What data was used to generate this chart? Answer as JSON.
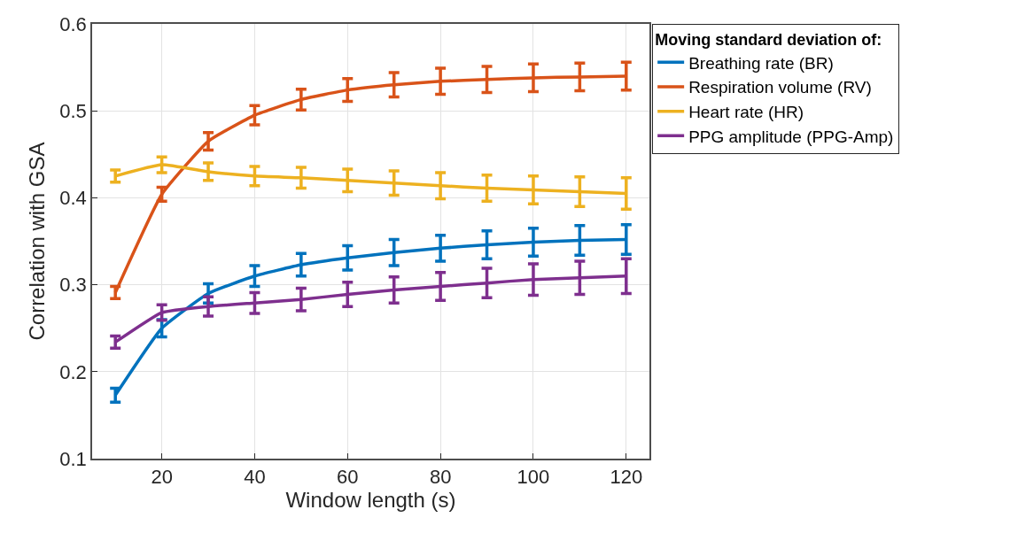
{
  "chart_data": {
    "type": "line",
    "xlabel": "Window length (s)",
    "ylabel": "Correlation with GSA",
    "legend_title": "Moving standard deviation of:",
    "x": [
      10,
      20,
      30,
      40,
      50,
      60,
      70,
      80,
      90,
      100,
      110,
      120
    ],
    "series": [
      {
        "name": "Breathing rate (BR)",
        "color": "#0072bd",
        "values": [
          0.173,
          0.25,
          0.29,
          0.31,
          0.323,
          0.331,
          0.337,
          0.342,
          0.346,
          0.349,
          0.351,
          0.352
        ],
        "errors": [
          0.008,
          0.01,
          0.011,
          0.012,
          0.013,
          0.014,
          0.015,
          0.015,
          0.016,
          0.016,
          0.017,
          0.017
        ]
      },
      {
        "name": "Respiration volume (RV)",
        "color": "#d95319",
        "values": [
          0.291,
          0.404,
          0.465,
          0.495,
          0.513,
          0.524,
          0.53,
          0.534,
          0.536,
          0.538,
          0.539,
          0.54
        ],
        "errors": [
          0.007,
          0.008,
          0.01,
          0.011,
          0.012,
          0.013,
          0.014,
          0.015,
          0.015,
          0.016,
          0.016,
          0.016
        ]
      },
      {
        "name": "Heart rate (HR)",
        "color": "#edb120",
        "values": [
          0.425,
          0.438,
          0.43,
          0.425,
          0.423,
          0.42,
          0.417,
          0.414,
          0.411,
          0.409,
          0.407,
          0.405
        ],
        "errors": [
          0.007,
          0.009,
          0.01,
          0.011,
          0.012,
          0.013,
          0.014,
          0.015,
          0.015,
          0.016,
          0.017,
          0.018
        ]
      },
      {
        "name": "PPG amplitude (PPG-Amp)",
        "color": "#7e2f8e",
        "values": [
          0.234,
          0.268,
          0.275,
          0.279,
          0.283,
          0.289,
          0.294,
          0.298,
          0.302,
          0.306,
          0.308,
          0.31
        ],
        "errors": [
          0.007,
          0.009,
          0.011,
          0.012,
          0.013,
          0.014,
          0.015,
          0.016,
          0.017,
          0.018,
          0.019,
          0.02
        ]
      }
    ],
    "xlim": [
      5,
      125
    ],
    "xticks": [
      20,
      40,
      60,
      80,
      100,
      120
    ],
    "ylim": [
      0.1,
      0.6
    ],
    "yticks": [
      0.1,
      0.2,
      0.3,
      0.4,
      0.5,
      0.6
    ],
    "grid": true,
    "legend": "top right",
    "marker": "none",
    "line_style": "solid"
  }
}
